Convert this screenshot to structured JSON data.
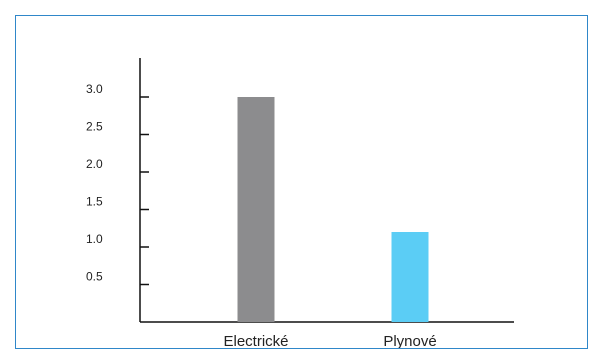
{
  "chart_data": {
    "type": "bar",
    "title": "",
    "xlabel": "",
    "ylabel": "",
    "categories": [
      "Electrické",
      "Plynové"
    ],
    "values": [
      3.0,
      1.2
    ],
    "bar_colors": [
      "#8c8c8e",
      "#5bcdf5"
    ],
    "ylim": [
      0,
      3.2
    ],
    "yticks": [
      0.5,
      1.0,
      1.5,
      2.0,
      2.5,
      3.0
    ],
    "ytick_labels": [
      "0.5",
      "1.0",
      "1.5",
      "2.0",
      "2.5",
      "3.0"
    ],
    "grid": false,
    "legend": "none"
  },
  "frame": {
    "border_color": "#2f87c9"
  }
}
